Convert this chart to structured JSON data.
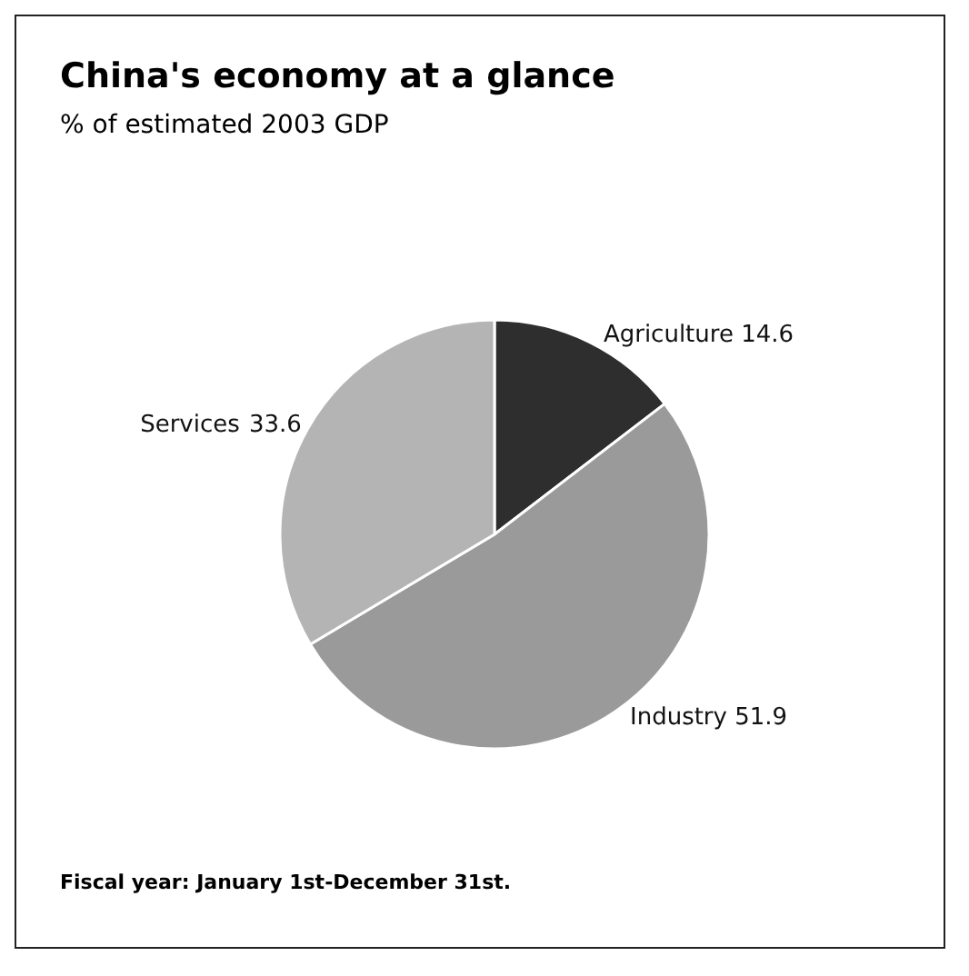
{
  "chart_data": {
    "type": "pie",
    "title": "China's economy at a glance",
    "subtitle": "% of estimated 2003 GDP",
    "categories": [
      "Agriculture",
      "Industry",
      "Services"
    ],
    "values": [
      14.6,
      51.9,
      33.6
    ],
    "colors": [
      "#2e2e2e",
      "#9a9a9a",
      "#b4b4b4"
    ],
    "data_labels": true,
    "annotations": [
      "Fiscal year: January 1st-December 31st."
    ]
  }
}
